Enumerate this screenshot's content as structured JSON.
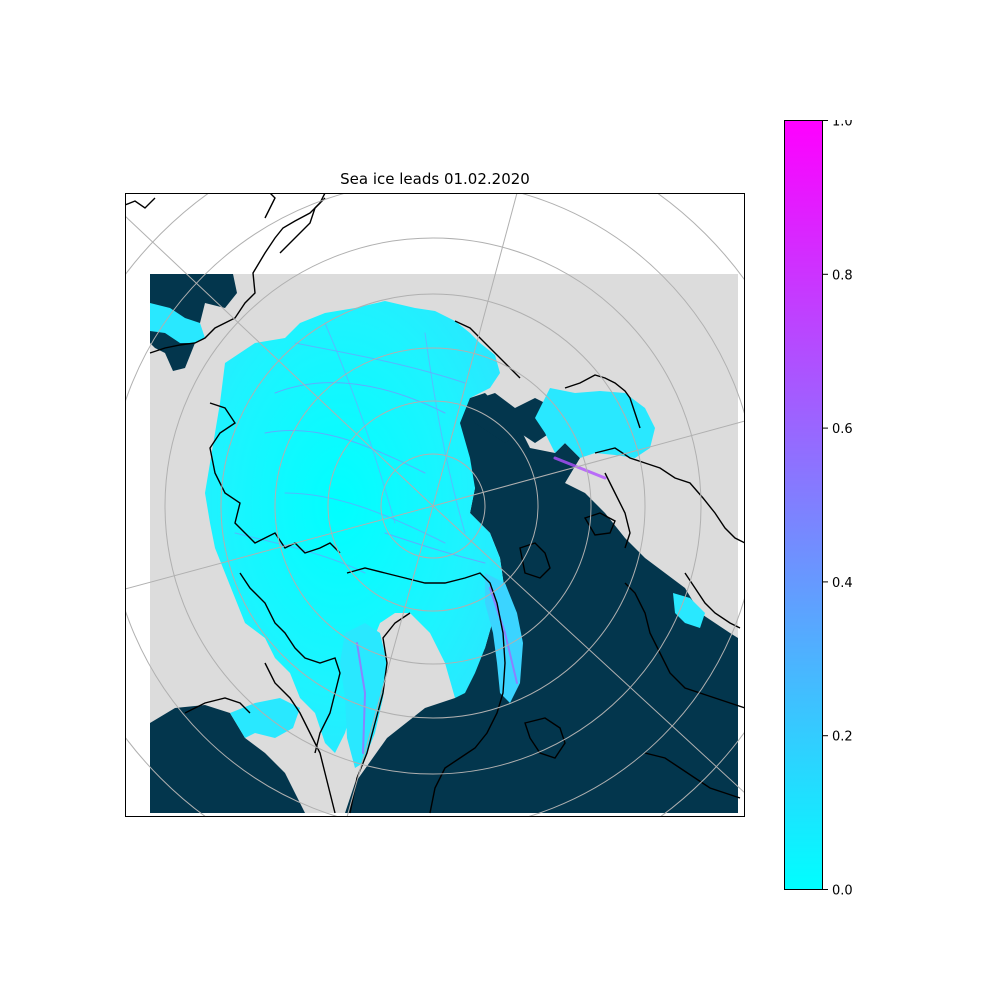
{
  "title": "Sea ice leads 01.02.2020",
  "colors": {
    "ocean_open": "#03364d",
    "land": "#dcdcdc",
    "coast": "#000000",
    "grid": "#b0b0b0",
    "colormap_min": "#00ffff",
    "colormap_max": "#ff00ff"
  },
  "map": {
    "projection": "north-polar-stereographic",
    "gridlines": true,
    "coastlines": true
  },
  "colorbar": {
    "colormap": "cool",
    "min": 0.0,
    "max": 1.0,
    "ticks": [
      "0.0",
      "0.2",
      "0.4",
      "0.6",
      "0.8",
      "1.0"
    ]
  }
}
